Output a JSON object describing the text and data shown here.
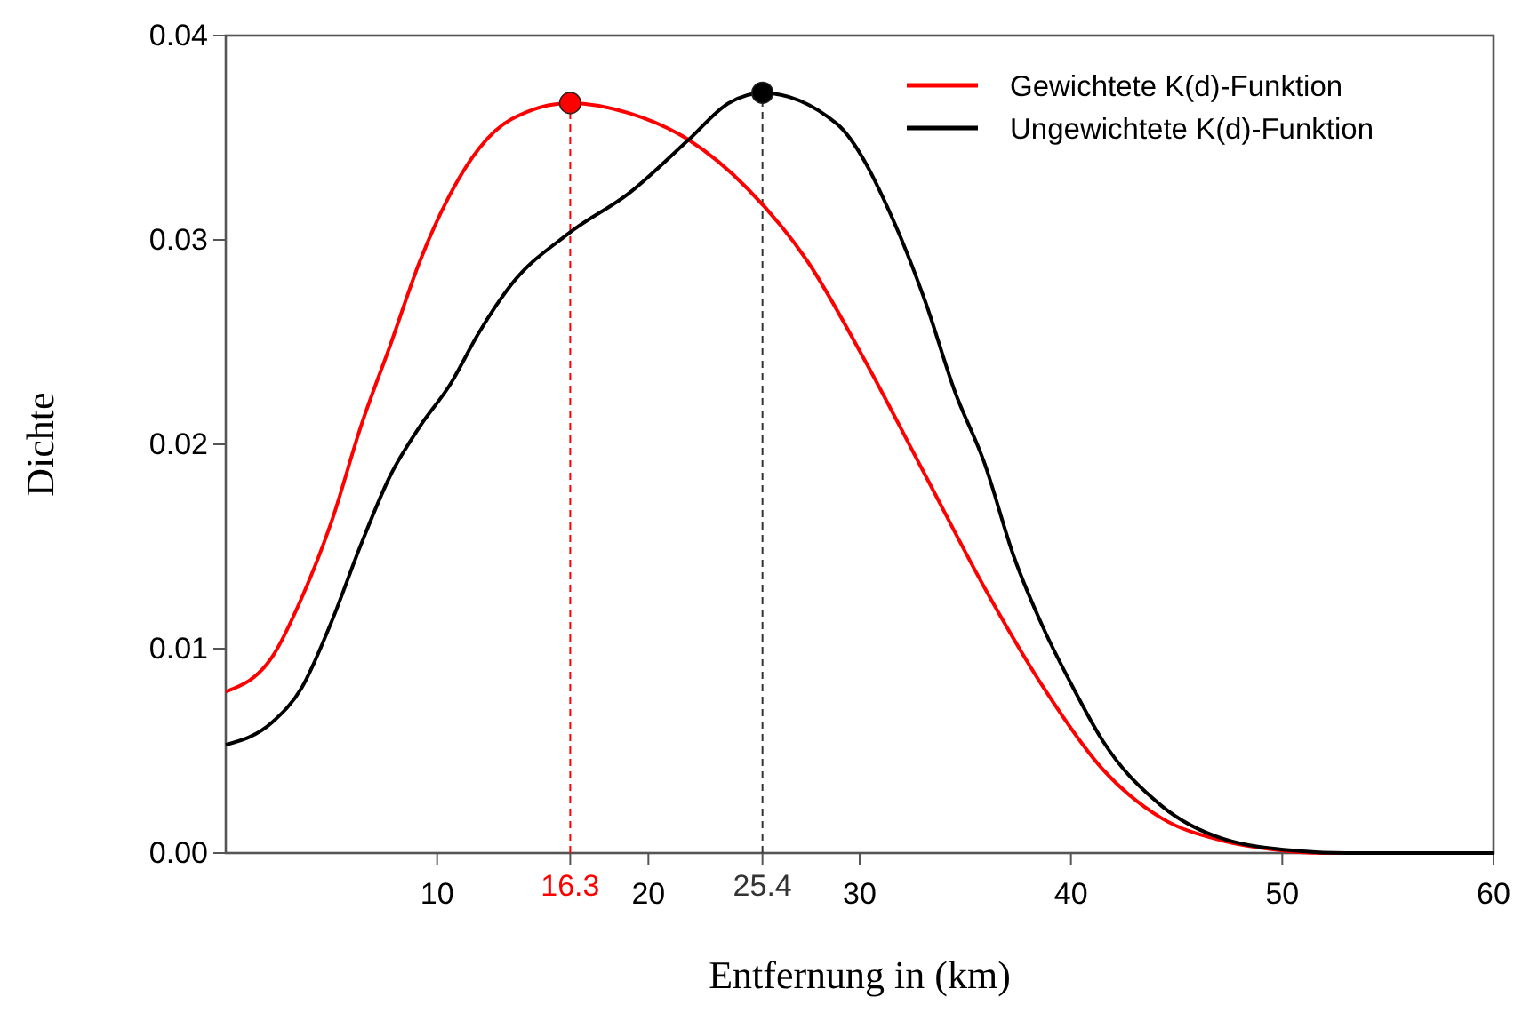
{
  "chart_data": {
    "type": "line",
    "xlabel": "Entfernung in (km)",
    "ylabel": "Dichte",
    "xlim": [
      0,
      60
    ],
    "xticks": [
      10,
      20,
      30,
      40,
      50,
      60
    ],
    "ylim": [
      0,
      0.04
    ],
    "yticks": [
      {
        "value": 0,
        "label": "0.00"
      },
      {
        "value": 0.01,
        "label": "0.01"
      },
      {
        "value": 0.02,
        "label": "0.02"
      },
      {
        "value": 0.03,
        "label": "0.03"
      },
      {
        "value": 0.04,
        "label": "0.04"
      }
    ],
    "grid": false,
    "legend": "top right",
    "line_style": "solid",
    "series": [
      {
        "name": "Gewichtete K(d)-Funktion",
        "color": "#ff0000",
        "x": [
          0,
          2.2,
          3.6,
          5.0,
          6.4,
          7.8,
          9.2,
          10.6,
          12.0,
          13.5,
          16.3,
          19.1,
          21.9,
          24.7,
          27.5,
          30.3,
          33.1,
          35.9,
          38.7,
          41.5,
          44.3,
          47.2,
          49.4,
          52,
          60
        ],
        "values": [
          0.0079,
          0.0096,
          0.0125,
          0.0162,
          0.0209,
          0.0249,
          0.029,
          0.0322,
          0.0345,
          0.0359,
          0.0367,
          0.0362,
          0.0349,
          0.0325,
          0.029,
          0.024,
          0.0185,
          0.013,
          0.0081,
          0.0041,
          0.0017,
          0.0006,
          0.0002,
          0,
          0
        ]
      },
      {
        "name": "Ungewichtete K(d)-Funktion",
        "color": "#000000",
        "x": [
          0,
          2.2,
          3.6,
          5.0,
          6.4,
          7.8,
          9.2,
          10.6,
          12.0,
          13.5,
          16.2,
          19.1,
          21.9,
          23.8,
          25.4,
          28.9,
          31.7,
          33.1,
          34.5,
          35.9,
          37.3,
          38.7,
          40.1,
          41.5,
          44.3,
          47.2,
          50.8,
          53,
          60
        ],
        "values": [
          0.0053,
          0.0064,
          0.0081,
          0.0113,
          0.0151,
          0.0185,
          0.0209,
          0.0229,
          0.0255,
          0.0278,
          0.0303,
          0.0323,
          0.0349,
          0.0367,
          0.0372,
          0.0357,
          0.0307,
          0.027,
          0.0226,
          0.0191,
          0.0145,
          0.011,
          0.0081,
          0.0055,
          0.0023,
          0.0007,
          0.0001,
          0,
          0
        ]
      },
      {
        "type": "scatter",
        "color": "#ff0000",
        "marker": "circle",
        "x": [
          16.3
        ],
        "values": [
          0.0367
        ]
      },
      {
        "type": "scatter",
        "color": "#000000",
        "marker": "circle",
        "x": [
          25.4
        ],
        "values": [
          0.0372
        ]
      }
    ],
    "ref_lines": [
      {
        "axis": "x",
        "value": 16.3,
        "label": "16.3",
        "color": "#ff0000",
        "line_style": "dashed"
      },
      {
        "axis": "x",
        "value": 25.4,
        "label": "25.4",
        "color": "#333333",
        "line_style": "dashed"
      }
    ]
  }
}
